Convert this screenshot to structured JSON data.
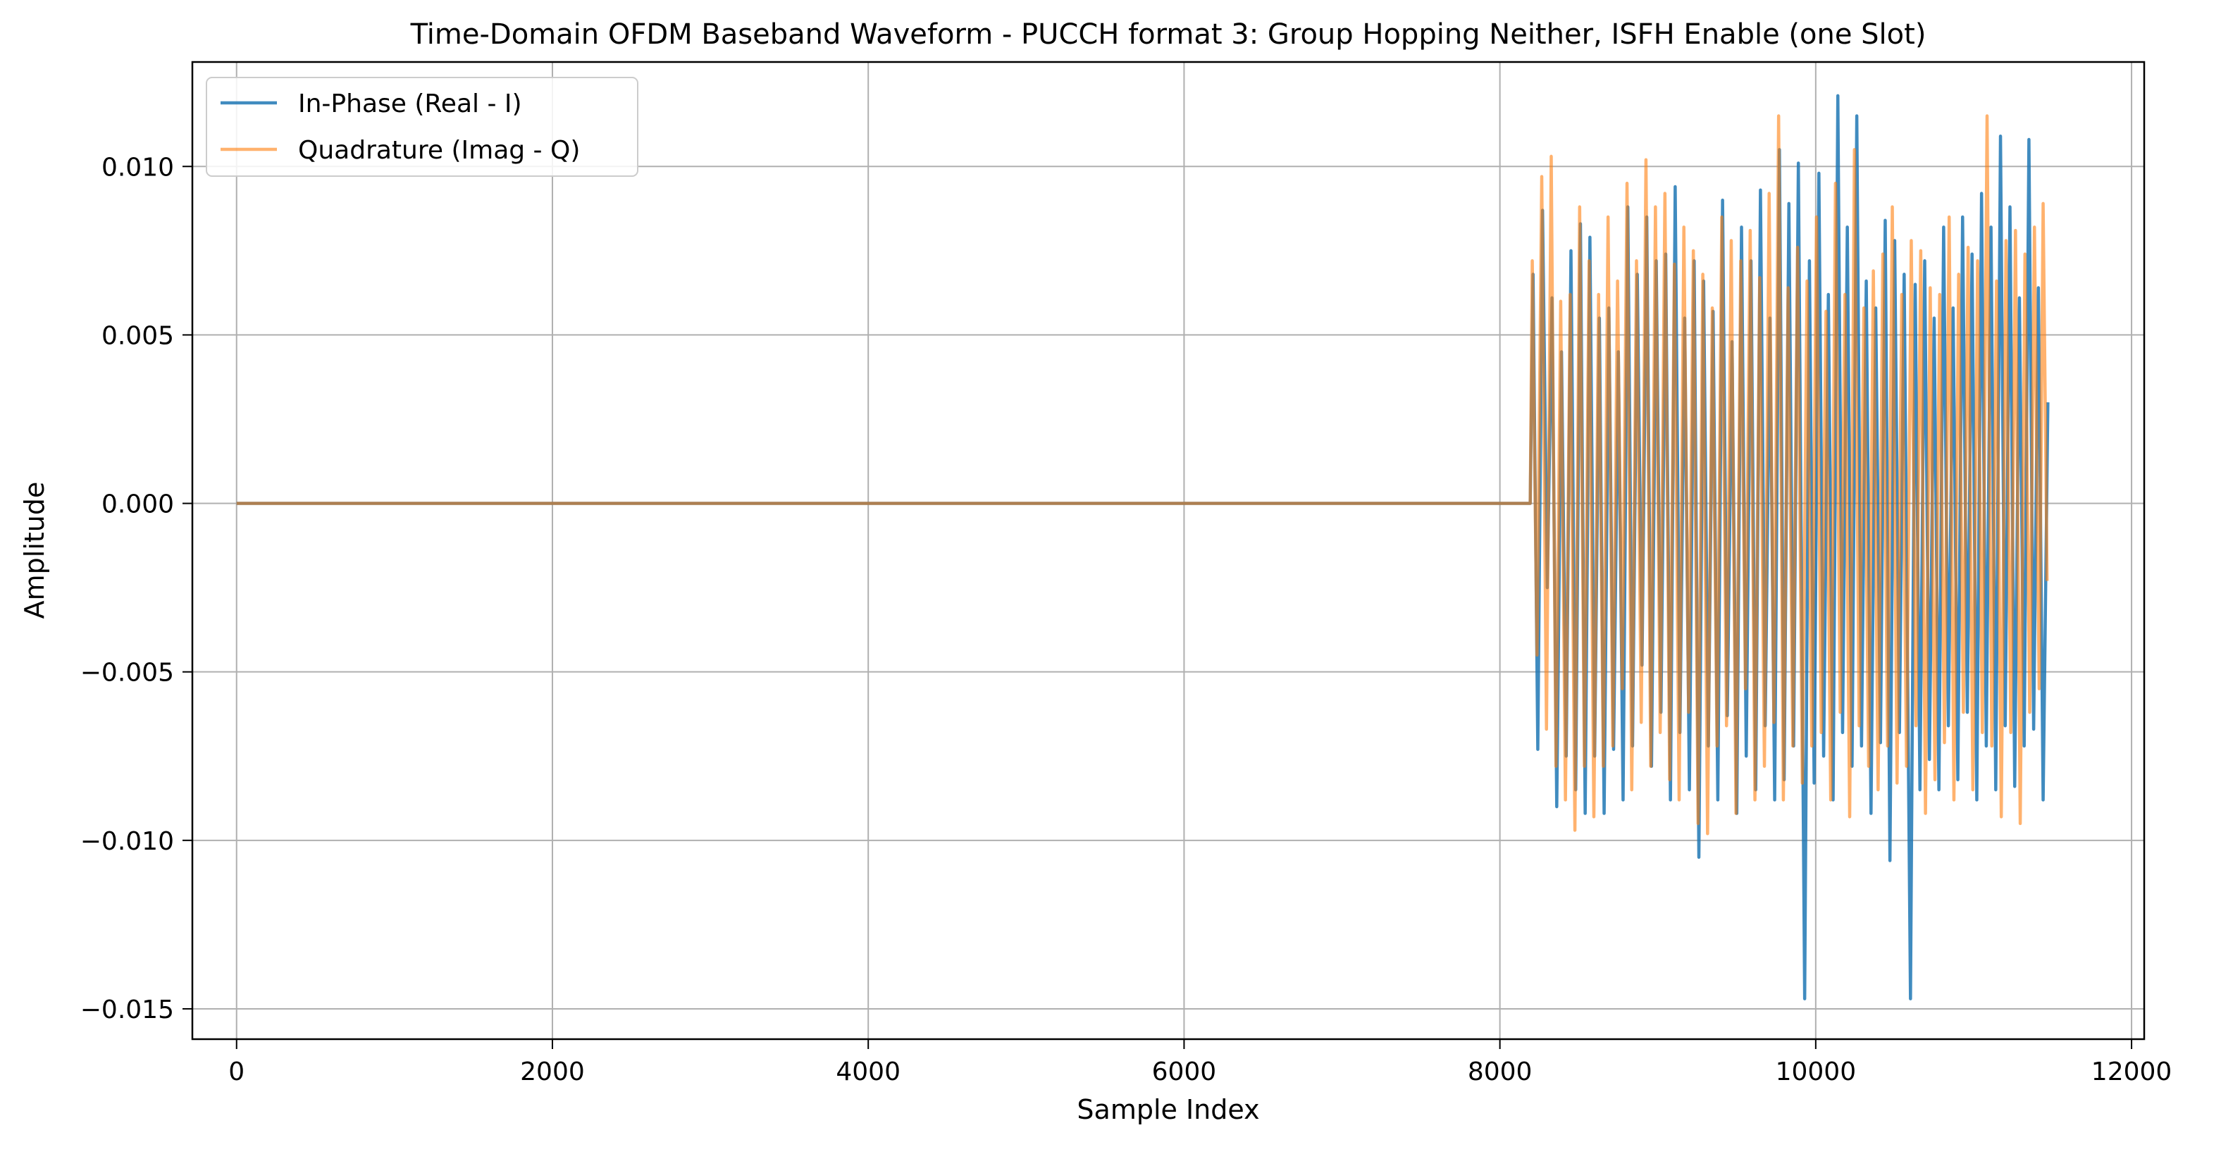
{
  "chart_data": {
    "type": "line",
    "title": "Time-Domain OFDM Baseband Waveform - PUCCH format 3: Group Hopping Neither, ISFH Enable (one Slot)",
    "xlabel": "Sample Index",
    "ylabel": "Amplitude",
    "xlim": [
      -280,
      12080
    ],
    "ylim": [
      -0.0159,
      0.0131
    ],
    "x_ticks": [
      0,
      2000,
      4000,
      6000,
      8000,
      10000,
      12000
    ],
    "x_tick_labels": [
      "0",
      "2000",
      "4000",
      "6000",
      "8000",
      "10000",
      "12000"
    ],
    "y_ticks": [
      -0.015,
      -0.01,
      -0.005,
      0.0,
      0.005,
      0.01
    ],
    "y_tick_labels": [
      "−0.015",
      "−0.010",
      "−0.005",
      "0.000",
      "0.005",
      "0.010"
    ],
    "grid": true,
    "legend_position": "top-left",
    "series": [
      {
        "name": "In-Phase (Real - I)",
        "color": "#1f77b4",
        "x": [
          0,
          8192,
          8210,
          8240,
          8270,
          8300,
          8330,
          8360,
          8390,
          8420,
          8450,
          8480,
          8510,
          8540,
          8570,
          8600,
          8630,
          8660,
          8690,
          8720,
          8750,
          8780,
          8810,
          8840,
          8870,
          8900,
          8930,
          8960,
          8990,
          9020,
          9050,
          9080,
          9110,
          9140,
          9170,
          9200,
          9230,
          9260,
          9290,
          9320,
          9350,
          9380,
          9410,
          9440,
          9470,
          9500,
          9530,
          9560,
          9590,
          9620,
          9650,
          9680,
          9710,
          9740,
          9770,
          9800,
          9830,
          9860,
          9890,
          9930,
          9960,
          9990,
          10020,
          10050,
          10080,
          10110,
          10140,
          10170,
          10200,
          10230,
          10260,
          10290,
          10320,
          10350,
          10380,
          10410,
          10440,
          10470,
          10500,
          10530,
          10560,
          10600,
          10630,
          10660,
          10690,
          10720,
          10750,
          10780,
          10810,
          10840,
          10870,
          10900,
          10930,
          10960,
          10990,
          11020,
          11050,
          11080,
          11110,
          11140,
          11170,
          11200,
          11230,
          11260,
          11290,
          11320,
          11350,
          11380,
          11410,
          11440,
          11470
        ],
        "y": [
          0.0,
          0.0,
          0.0068,
          -0.0073,
          0.0087,
          -0.0025,
          0.0061,
          -0.009,
          0.0045,
          -0.0075,
          0.0075,
          -0.0085,
          0.0083,
          -0.0092,
          0.0079,
          -0.0075,
          0.0055,
          -0.0092,
          0.0058,
          -0.0073,
          0.0045,
          -0.0088,
          0.0088,
          -0.0072,
          0.0068,
          -0.0048,
          0.0085,
          -0.0078,
          0.0072,
          -0.0062,
          0.0074,
          -0.0088,
          0.0094,
          -0.0068,
          0.0055,
          -0.0085,
          0.0072,
          -0.0105,
          0.0066,
          -0.0072,
          0.0057,
          -0.0088,
          0.009,
          -0.0063,
          0.0048,
          -0.0092,
          0.0082,
          -0.0075,
          0.0072,
          -0.0085,
          0.0093,
          -0.0066,
          0.0055,
          -0.0088,
          0.0105,
          -0.0082,
          0.0089,
          -0.0072,
          0.0101,
          -0.0147,
          0.0072,
          -0.0083,
          0.0098,
          -0.0075,
          0.0062,
          -0.0088,
          0.0121,
          -0.0068,
          0.0082,
          -0.0078,
          0.0115,
          -0.0072,
          0.0066,
          -0.0092,
          0.0058,
          -0.0071,
          0.0084,
          -0.0106,
          0.0078,
          -0.0068,
          0.0068,
          -0.0147,
          0.0065,
          -0.0085,
          0.0072,
          -0.0076,
          0.0055,
          -0.0085,
          0.0082,
          -0.0066,
          0.0058,
          -0.0082,
          0.0085,
          -0.0062,
          0.0074,
          -0.0088,
          0.0092,
          -0.0072,
          0.0082,
          -0.0085,
          0.0109,
          -0.0066,
          0.0088,
          -0.0084,
          0.0061,
          -0.0072,
          0.0108,
          -0.0067,
          0.0064,
          -0.0088,
          0.003
        ]
      },
      {
        "name": "Quadrature (Imag - Q)",
        "color": "#ff7f0e",
        "x": [
          0,
          8192,
          8205,
          8235,
          8265,
          8295,
          8325,
          8355,
          8385,
          8415,
          8445,
          8475,
          8505,
          8535,
          8565,
          8595,
          8625,
          8655,
          8685,
          8715,
          8745,
          8775,
          8805,
          8835,
          8865,
          8895,
          8925,
          8955,
          8985,
          9015,
          9045,
          9075,
          9105,
          9135,
          9165,
          9195,
          9225,
          9255,
          9285,
          9315,
          9345,
          9375,
          9405,
          9435,
          9465,
          9495,
          9525,
          9555,
          9585,
          9615,
          9645,
          9675,
          9705,
          9735,
          9765,
          9795,
          9825,
          9855,
          9885,
          9915,
          9945,
          9975,
          10005,
          10035,
          10065,
          10095,
          10125,
          10155,
          10185,
          10215,
          10245,
          10275,
          10305,
          10335,
          10365,
          10395,
          10425,
          10455,
          10485,
          10515,
          10545,
          10575,
          10605,
          10635,
          10665,
          10695,
          10725,
          10755,
          10785,
          10815,
          10845,
          10875,
          10905,
          10935,
          10965,
          10995,
          11025,
          11055,
          11085,
          11115,
          11145,
          11175,
          11205,
          11235,
          11265,
          11295,
          11325,
          11355,
          11385,
          11415,
          11440,
          11465
        ],
        "y": [
          0.0,
          0.0,
          0.0072,
          -0.0045,
          0.0097,
          -0.0067,
          0.0103,
          -0.0078,
          0.006,
          -0.0088,
          0.0062,
          -0.0097,
          0.0088,
          -0.0078,
          0.0072,
          -0.0093,
          0.0062,
          -0.0078,
          0.0085,
          -0.0072,
          0.0066,
          -0.0055,
          0.0095,
          -0.0085,
          0.0072,
          -0.0065,
          0.0102,
          -0.0078,
          0.0088,
          -0.0068,
          0.0092,
          -0.0082,
          0.0071,
          -0.0088,
          0.0082,
          -0.0062,
          0.0075,
          -0.0095,
          0.0068,
          -0.0098,
          0.0058,
          -0.0072,
          0.0085,
          -0.0066,
          0.0078,
          -0.0092,
          0.0072,
          -0.0055,
          0.0081,
          -0.0088,
          0.0067,
          -0.0078,
          0.0092,
          -0.0065,
          0.0115,
          -0.0088,
          0.0064,
          -0.0072,
          0.0076,
          -0.0083,
          0.0066,
          -0.0072,
          0.0085,
          -0.0068,
          0.0057,
          -0.0088,
          0.0095,
          -0.0062,
          0.0062,
          -0.0093,
          0.0105,
          -0.0066,
          0.0058,
          -0.0078,
          0.0069,
          -0.0085,
          0.0074,
          -0.0072,
          0.0088,
          -0.0083,
          0.0062,
          -0.0078,
          0.0078,
          -0.0066,
          0.0075,
          -0.0092,
          0.0064,
          -0.0082,
          0.0062,
          -0.0071,
          0.0085,
          -0.0088,
          0.0068,
          -0.0062,
          0.0076,
          -0.0085,
          0.0072,
          -0.0068,
          0.0115,
          -0.0072,
          0.0066,
          -0.0093,
          0.0078,
          -0.0068,
          0.0081,
          -0.0095,
          0.0074,
          -0.0062,
          0.0082,
          -0.0055,
          0.0089,
          -0.0023
        ]
      }
    ]
  }
}
